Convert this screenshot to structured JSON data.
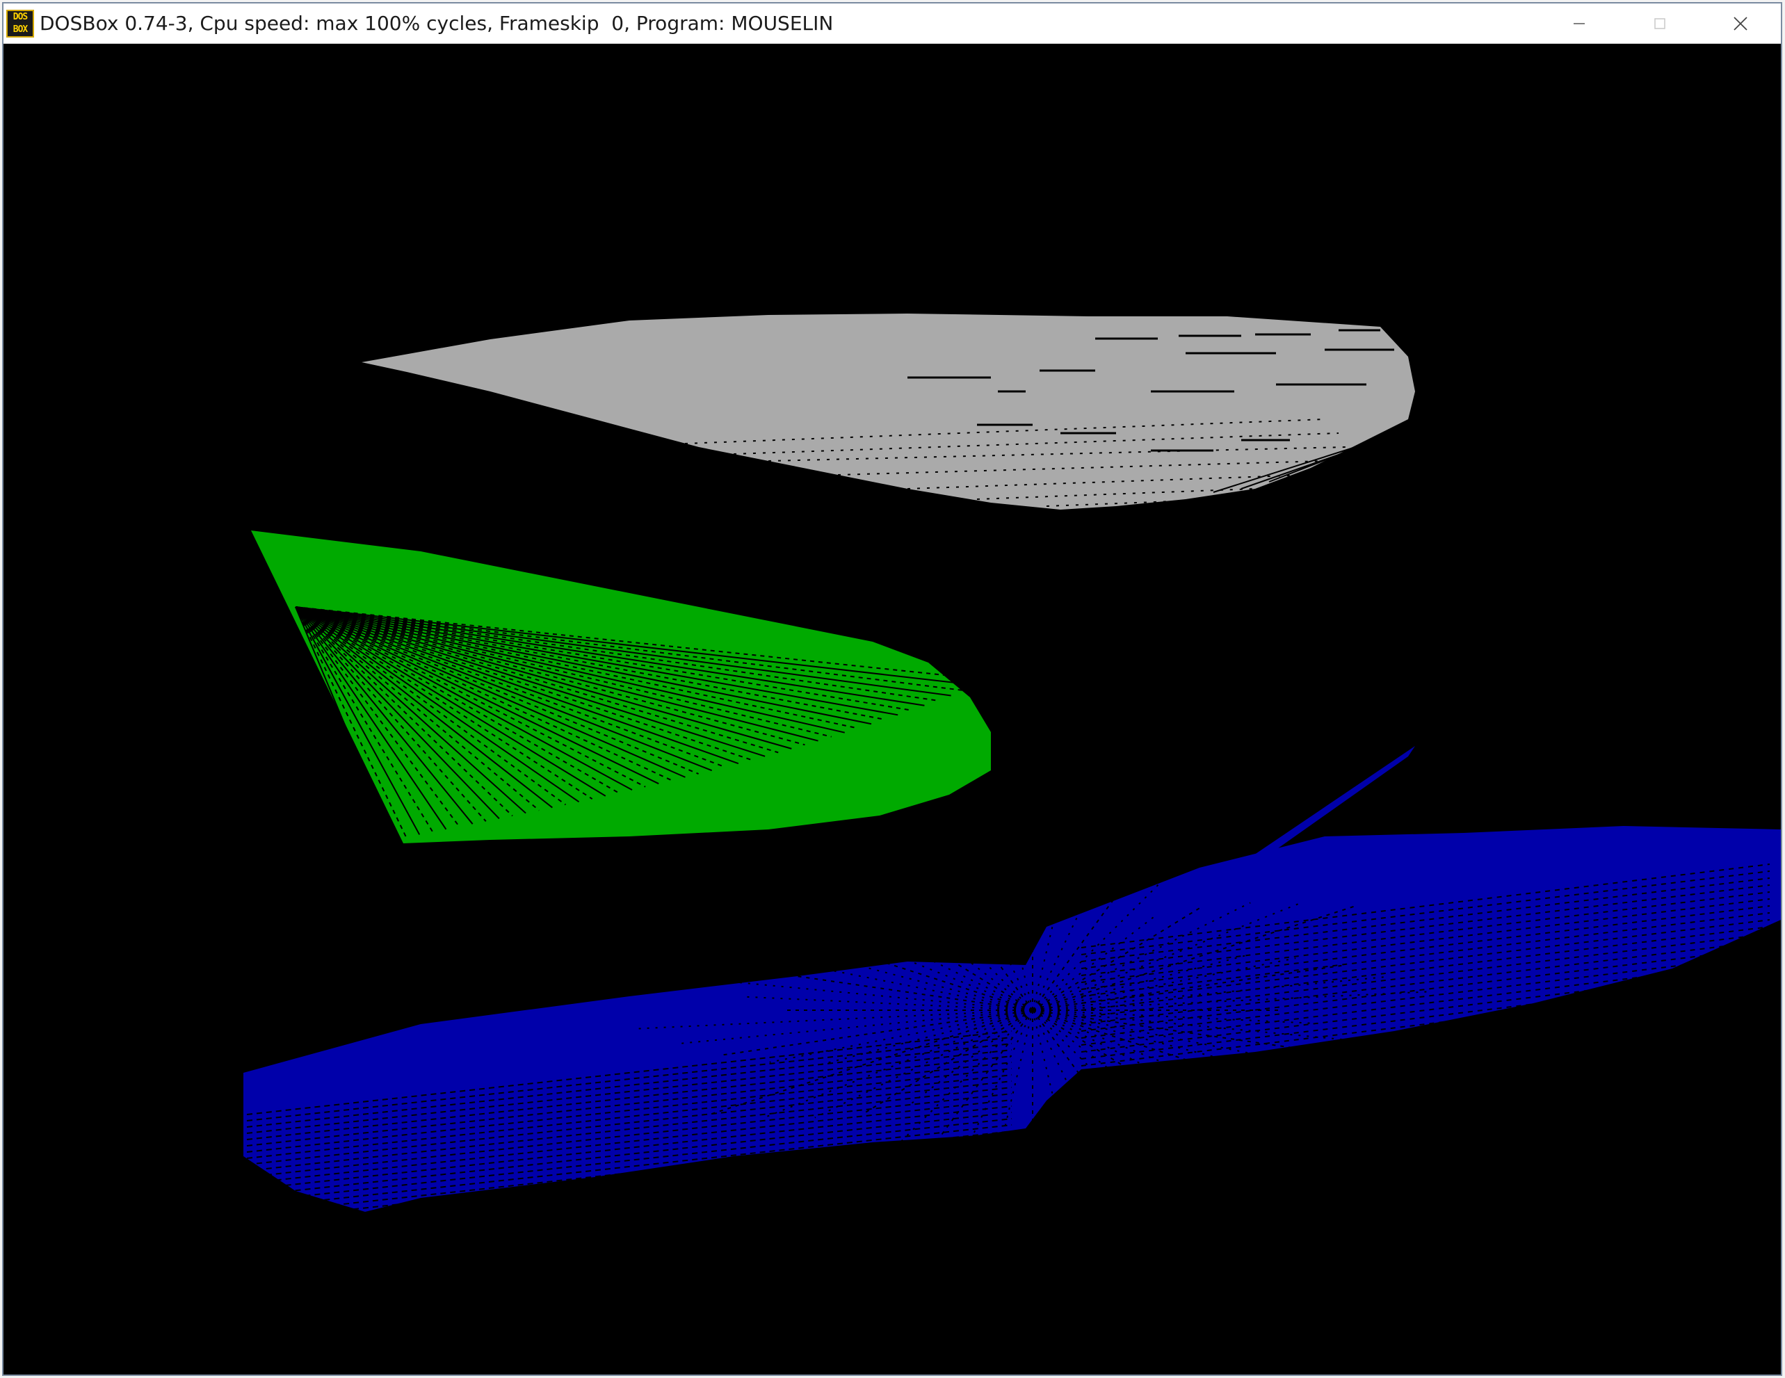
{
  "window": {
    "title": "DOSBox 0.74-3, Cpu speed: max 100% cycles, Frameskip  0, Program: MOUSELIN",
    "icon_text_top": "DOS",
    "icon_text_bottom": "BOX",
    "icon_name": "dosbox-app-icon",
    "controls": [
      "minimize-icon",
      "maximize-icon",
      "close-icon"
    ]
  },
  "screen": {
    "background": "#000000",
    "shapes": [
      {
        "name": "gray-fan-shape",
        "color": "#aaaaaa",
        "description_color": "light gray"
      },
      {
        "name": "green-fan-shape",
        "color": "#00aa00",
        "description_color": "green"
      },
      {
        "name": "blue-fan-shape",
        "color": "#0000aa",
        "description_color": "blue"
      }
    ]
  }
}
